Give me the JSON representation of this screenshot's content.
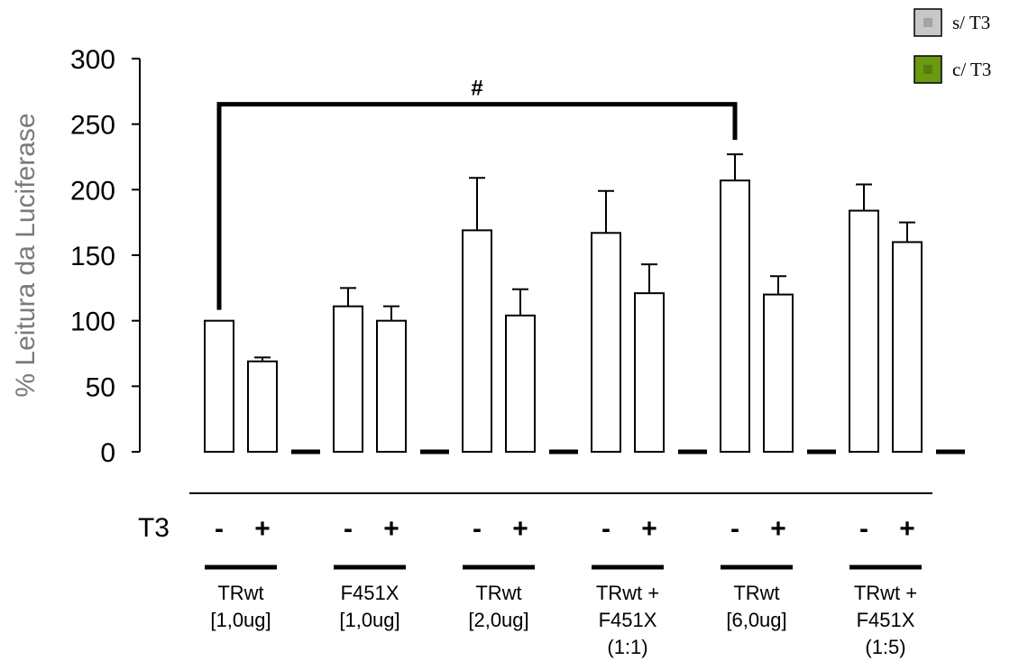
{
  "chart_data": {
    "type": "bar",
    "ylabel": "% Leitura da Luciferase",
    "ylim": [
      0,
      300
    ],
    "yticks": [
      0,
      50,
      100,
      150,
      200,
      250,
      300
    ],
    "grid": false,
    "legend_position": "top-right",
    "legend": [
      {
        "label": "s/ T3",
        "color": "#c8c8c8"
      },
      {
        "label": "c/ T3",
        "color": "#6a9a10"
      }
    ],
    "treatment_label": "T3",
    "groups": [
      {
        "label_lines": [
          "TRwt",
          "[1,0ug]"
        ],
        "bars": [
          {
            "sign": "-",
            "value": 100,
            "error": 0
          },
          {
            "sign": "+",
            "value": 69,
            "error": 3
          }
        ]
      },
      {
        "label_lines": [
          "F451X",
          "[1,0ug]"
        ],
        "bars": [
          {
            "sign": "-",
            "value": 111,
            "error": 14
          },
          {
            "sign": "+",
            "value": 100,
            "error": 11
          }
        ]
      },
      {
        "label_lines": [
          "TRwt",
          "[2,0ug]"
        ],
        "bars": [
          {
            "sign": "-",
            "value": 169,
            "error": 40
          },
          {
            "sign": "+",
            "value": 104,
            "error": 20
          }
        ]
      },
      {
        "label_lines": [
          "TRwt +",
          "F451X",
          "(1:1)"
        ],
        "bars": [
          {
            "sign": "-",
            "value": 167,
            "error": 32
          },
          {
            "sign": "+",
            "value": 121,
            "error": 22
          }
        ]
      },
      {
        "label_lines": [
          "TRwt",
          "[6,0ug]"
        ],
        "bars": [
          {
            "sign": "-",
            "value": 207,
            "error": 20
          },
          {
            "sign": "+",
            "value": 120,
            "error": 14
          }
        ]
      },
      {
        "label_lines": [
          "TRwt +",
          "F451X",
          "(1:5)"
        ],
        "bars": [
          {
            "sign": "-",
            "value": 184,
            "error": 20
          },
          {
            "sign": "+",
            "value": 160,
            "error": 15
          }
        ]
      }
    ],
    "annotations": [
      {
        "text": "#",
        "from_group": 0,
        "to_group": 4,
        "level": 270
      }
    ]
  }
}
